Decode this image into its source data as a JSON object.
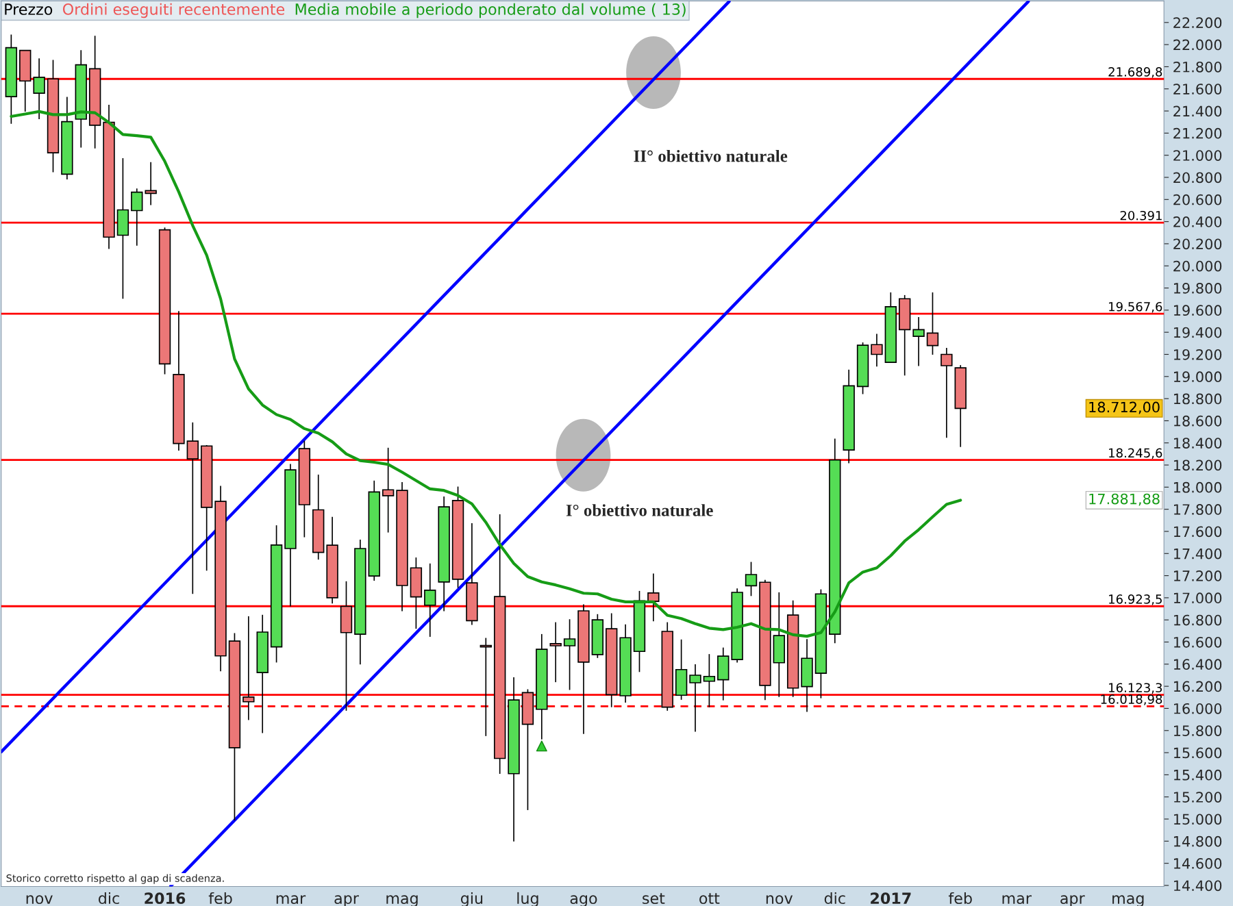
{
  "chart_data": {
    "type": "candlestick",
    "x": [
      "2015-10-19",
      "2015-10-26",
      "2015-11-02",
      "2015-11-09",
      "2015-11-16",
      "2015-11-23",
      "2015-11-30",
      "2015-12-07",
      "2015-12-14",
      "2015-12-21",
      "2015-12-28",
      "2016-01-04",
      "2016-01-11",
      "2016-01-18",
      "2016-01-25",
      "2016-02-01",
      "2016-02-08",
      "2016-02-15",
      "2016-02-22",
      "2016-02-29",
      "2016-03-07",
      "2016-03-14",
      "2016-03-21",
      "2016-03-28",
      "2016-04-04",
      "2016-04-11",
      "2016-04-18",
      "2016-04-25",
      "2016-05-02",
      "2016-05-09",
      "2016-05-16",
      "2016-05-23",
      "2016-05-30",
      "2016-06-06",
      "2016-06-13",
      "2016-06-20",
      "2016-06-27",
      "2016-07-04",
      "2016-07-11",
      "2016-07-18",
      "2016-07-25",
      "2016-08-01",
      "2016-08-08",
      "2016-08-15",
      "2016-08-22",
      "2016-08-29",
      "2016-09-05",
      "2016-09-12",
      "2016-09-19",
      "2016-09-26",
      "2016-10-03",
      "2016-10-10",
      "2016-10-17",
      "2016-10-24",
      "2016-10-31",
      "2016-11-07",
      "2016-11-14",
      "2016-11-21",
      "2016-11-28",
      "2016-12-05",
      "2016-12-12",
      "2016-12-19",
      "2016-12-26",
      "2017-01-02",
      "2017-01-09",
      "2017-01-16",
      "2017-01-23",
      "2017-01-30",
      "2017-02-06"
    ],
    "series": [
      {
        "name": "Prezzo",
        "ohlc": [
          [
            21530,
            22091,
            21285,
            21972
          ],
          [
            21947,
            21952,
            21395,
            21671
          ],
          [
            21561,
            21875,
            21326,
            21704
          ],
          [
            21690,
            21862,
            20846,
            21022
          ],
          [
            20829,
            21528,
            20782,
            21304
          ],
          [
            21326,
            21950,
            21069,
            21817
          ],
          [
            21782,
            22080,
            21061,
            21271
          ],
          [
            21298,
            21456,
            20153,
            20260
          ],
          [
            20277,
            20973,
            19703,
            20506
          ],
          [
            20500,
            20699,
            20183,
            20666
          ],
          [
            20680,
            20937,
            20550,
            20655
          ],
          [
            20326,
            20346,
            19021,
            19114
          ],
          [
            19018,
            19592,
            18330,
            18394
          ],
          [
            18416,
            18585,
            17035,
            18255
          ],
          [
            18372,
            18380,
            17245,
            17817
          ],
          [
            17871,
            18011,
            16335,
            16475
          ],
          [
            16609,
            16680,
            14987,
            15645
          ],
          [
            16103,
            16833,
            15895,
            16060
          ],
          [
            16324,
            16846,
            15777,
            16690
          ],
          [
            16556,
            17655,
            16415,
            17477
          ],
          [
            17445,
            18210,
            16922,
            18156
          ],
          [
            18348,
            18419,
            17547,
            17841
          ],
          [
            17795,
            18113,
            17345,
            17410
          ],
          [
            17475,
            17731,
            16949,
            17000
          ],
          [
            16922,
            17149,
            15979,
            16685
          ],
          [
            16671,
            17526,
            16397,
            17445
          ],
          [
            17197,
            18059,
            17154,
            17957
          ],
          [
            17976,
            18356,
            17590,
            17922
          ],
          [
            17970,
            18046,
            16879,
            17111
          ],
          [
            17270,
            17364,
            16720,
            17008
          ],
          [
            16933,
            17310,
            16647,
            17068
          ],
          [
            17143,
            17916,
            16879,
            17822
          ],
          [
            17879,
            18005,
            17089,
            17167
          ],
          [
            17135,
            17674,
            16755,
            16793
          ],
          [
            16569,
            16637,
            15750,
            16556
          ],
          [
            17011,
            17755,
            15408,
            15548
          ],
          [
            15410,
            16281,
            14798,
            16076
          ],
          [
            16143,
            16173,
            15081,
            15857
          ],
          [
            15992,
            16672,
            15720,
            16534
          ],
          [
            16585,
            16779,
            16237,
            16566
          ],
          [
            16566,
            16806,
            16167,
            16628
          ],
          [
            16882,
            16941,
            15769,
            16418
          ],
          [
            16486,
            16852,
            16456,
            16801
          ],
          [
            16720,
            16860,
            16011,
            16124
          ],
          [
            16114,
            16760,
            16052,
            16639
          ],
          [
            16515,
            17062,
            16329,
            16973
          ],
          [
            17043,
            17219,
            16787,
            16968
          ],
          [
            16696,
            16779,
            15979,
            16011
          ],
          [
            16119,
            16623,
            16078,
            16351
          ],
          [
            16232,
            16399,
            15790,
            16300
          ],
          [
            16246,
            16491,
            16011,
            16289
          ],
          [
            16259,
            16550,
            16073,
            16472
          ],
          [
            16442,
            17084,
            16415,
            17049
          ],
          [
            17108,
            17324,
            17016,
            17210
          ],
          [
            17140,
            17162,
            16076,
            16208
          ],
          [
            16413,
            17049,
            16103,
            16658
          ],
          [
            16844,
            16976,
            16103,
            16184
          ],
          [
            16197,
            16626,
            15968,
            16453
          ],
          [
            16318,
            17076,
            16092,
            17035
          ],
          [
            16671,
            18438,
            16590,
            18245
          ],
          [
            18336,
            19062,
            18216,
            18916
          ],
          [
            18910,
            19308,
            18841,
            19283
          ],
          [
            19288,
            19385,
            19090,
            19200
          ],
          [
            19128,
            19760,
            19128,
            19631
          ],
          [
            19703,
            19736,
            19009,
            19424
          ],
          [
            19363,
            19537,
            19095,
            19424
          ],
          [
            19393,
            19760,
            19197,
            19280
          ],
          [
            19200,
            19258,
            18446,
            19098
          ],
          [
            19078,
            19103,
            18363,
            18712
          ]
        ],
        "colors": [
          "#55dd55",
          "#ec7777",
          "#55dd55",
          "#ec7777",
          "#55dd55",
          "#55dd55",
          "#ec7777",
          "#ec7777",
          "#55dd55",
          "#55dd55",
          "#ec7777",
          "#ec7777",
          "#ec7777",
          "#ec7777",
          "#ec7777",
          "#ec7777",
          "#ec7777",
          "#ec7777",
          "#55dd55",
          "#55dd55",
          "#55dd55",
          "#ec7777",
          "#ec7777",
          "#ec7777",
          "#ec7777",
          "#55dd55",
          "#55dd55",
          "#ec7777",
          "#ec7777",
          "#ec7777",
          "#55dd55",
          "#55dd55",
          "#ec7777",
          "#ec7777",
          "#ec7777",
          "#ec7777",
          "#55dd55",
          "#ec7777",
          "#55dd55",
          "#ec7777",
          "#55dd55",
          "#ec7777",
          "#55dd55",
          "#ec7777",
          "#55dd55",
          "#55dd55",
          "#ec7777",
          "#ec7777",
          "#55dd55",
          "#55dd55",
          "#55dd55",
          "#55dd55",
          "#55dd55",
          "#55dd55",
          "#ec7777",
          "#55dd55",
          "#ec7777",
          "#55dd55",
          "#55dd55",
          "#55dd55",
          "#55dd55",
          "#55dd55",
          "#ec7777",
          "#55dd55",
          "#ec7777",
          "#55dd55",
          "#ec7777",
          "#ec7777",
          "#ec7777"
        ]
      },
      {
        "name": "Media mobile a periodo ponderato dal volume ( 13)",
        "type": "line",
        "color": "#169c16",
        "values": [
          21351,
          21373,
          21395,
          21367,
          21367,
          21392,
          21384,
          21296,
          21188,
          21177,
          21163,
          20945,
          20669,
          20365,
          20097,
          19702,
          19159,
          18888,
          18742,
          18656,
          18612,
          18529,
          18488,
          18410,
          18300,
          18240,
          18225,
          18206,
          18135,
          18059,
          17984,
          17970,
          17925,
          17849,
          17682,
          17480,
          17310,
          17191,
          17143,
          17116,
          17081,
          17041,
          17035,
          16987,
          16963,
          16963,
          16963,
          16841,
          16812,
          16766,
          16725,
          16712,
          16733,
          16766,
          16717,
          16712,
          16666,
          16652,
          16685,
          16873,
          17135,
          17232,
          17270,
          17380,
          17512,
          17615,
          17731,
          17844,
          17882
        ]
      },
      {
        "type": "line",
        "color": "#0000ff",
        "x": [
          "2015-10-14",
          "2016-10-13"
        ],
        "values": [
          15607,
          22390
        ]
      },
      {
        "type": "line",
        "color": "#0000ff",
        "x": [
          "2016-01-07",
          "2017-03-12"
        ],
        "values": [
          14394,
          22390
        ]
      },
      {
        "type": "scatter",
        "marker": "triangle",
        "color": "#33cc33",
        "x": [
          "2016-07-11"
        ],
        "values": [
          15660
        ]
      }
    ],
    "ref_lines": [
      {
        "axis": "y",
        "value": 21689.8,
        "label": "21.689,8",
        "color": "#ff0000"
      },
      {
        "axis": "y",
        "value": 20391,
        "label": "20.391",
        "color": "#ff0000"
      },
      {
        "axis": "y",
        "value": 19567.6,
        "label": "19.567,6",
        "color": "#ff0000"
      },
      {
        "axis": "y",
        "value": 18245.6,
        "label": "18.245,6",
        "color": "#ff0000"
      },
      {
        "axis": "y",
        "value": 16923.5,
        "label": "16.923,5",
        "color": "#ff0000"
      },
      {
        "axis": "y",
        "value": 16123.3,
        "label": "16.123,3",
        "color": "#ff0000"
      },
      {
        "axis": "y",
        "value": 16018.98,
        "label": "16.018,98",
        "color": "#ff0000",
        "line_style": "dashed"
      }
    ],
    "annotations": [
      "Ordini eseguiti recentemente",
      "II° obiettivo naturale",
      "I° obiettivo naturale",
      "Storico corretto rispetto al gap di scadenza.",
      "18.712,00",
      "17.881,88"
    ],
    "xlim": [
      "2015-10-14",
      "2017-05-19"
    ],
    "xticks": [
      {
        "value": "2015-11-02",
        "label": "nov"
      },
      {
        "value": "2015-12-07",
        "label": "dic"
      },
      {
        "value": "2016-01-04",
        "label": "2016"
      },
      {
        "value": "2016-02-01",
        "label": "feb"
      },
      {
        "value": "2016-03-07",
        "label": "mar"
      },
      {
        "value": "2016-04-04",
        "label": "apr"
      },
      {
        "value": "2016-05-02",
        "label": "mag"
      },
      {
        "value": "2016-06-06",
        "label": "giu"
      },
      {
        "value": "2016-07-04",
        "label": "lug"
      },
      {
        "value": "2016-08-01",
        "label": "ago"
      },
      {
        "value": "2016-09-05",
        "label": "set"
      },
      {
        "value": "2016-10-03",
        "label": "ott"
      },
      {
        "value": "2016-11-07",
        "label": "nov"
      },
      {
        "value": "2016-12-05",
        "label": "dic"
      },
      {
        "value": "2017-01-02",
        "label": "2017"
      },
      {
        "value": "2017-02-06",
        "label": "feb"
      },
      {
        "value": "2017-03-06",
        "label": "mar"
      },
      {
        "value": "2017-04-03",
        "label": "apr"
      },
      {
        "value": "2017-05-01",
        "label": "mag"
      }
    ],
    "ylim": [
      14390,
      22395
    ],
    "yticks": [
      {
        "value": 14400,
        "label": "14.400"
      },
      {
        "value": 14600,
        "label": "14.600"
      },
      {
        "value": 14800,
        "label": "14.800"
      },
      {
        "value": 15000,
        "label": "15.000"
      },
      {
        "value": 15200,
        "label": "15.200"
      },
      {
        "value": 15400,
        "label": "15.400"
      },
      {
        "value": 15600,
        "label": "15.600"
      },
      {
        "value": 15800,
        "label": "15.800"
      },
      {
        "value": 16000,
        "label": "16.000"
      },
      {
        "value": 16200,
        "label": "16.200"
      },
      {
        "value": 16400,
        "label": "16.400"
      },
      {
        "value": 16600,
        "label": "16.600"
      },
      {
        "value": 16800,
        "label": "16.800"
      },
      {
        "value": 17000,
        "label": "17.000"
      },
      {
        "value": 17200,
        "label": "17.200"
      },
      {
        "value": 17400,
        "label": "17.400"
      },
      {
        "value": 17600,
        "label": "17.600"
      },
      {
        "value": 17800,
        "label": "17.800"
      },
      {
        "value": 18000,
        "label": "18.000"
      },
      {
        "value": 18200,
        "label": "18.200"
      },
      {
        "value": 18400,
        "label": "18.400"
      },
      {
        "value": 18600,
        "label": "18.600"
      },
      {
        "value": 18800,
        "label": "18.800"
      },
      {
        "value": 19000,
        "label": "19.000"
      },
      {
        "value": 19200,
        "label": "19.200"
      },
      {
        "value": 19400,
        "label": "19.400"
      },
      {
        "value": 19600,
        "label": "19.600"
      },
      {
        "value": 19800,
        "label": "19.800"
      },
      {
        "value": 20000,
        "label": "20.000"
      },
      {
        "value": 20200,
        "label": "20.200"
      },
      {
        "value": 20400,
        "label": "20.400"
      },
      {
        "value": 20600,
        "label": "20.600"
      },
      {
        "value": 20800,
        "label": "20.800"
      },
      {
        "value": 21000,
        "label": "21.000"
      },
      {
        "value": 21200,
        "label": "21.200"
      },
      {
        "value": 21400,
        "label": "21.400"
      },
      {
        "value": 21600,
        "label": "21.600"
      },
      {
        "value": 21800,
        "label": "21.800"
      },
      {
        "value": 22000,
        "label": "22.000"
      },
      {
        "value": 22200,
        "label": "22.200"
      }
    ],
    "grid": false,
    "legend": "top left"
  }
}
